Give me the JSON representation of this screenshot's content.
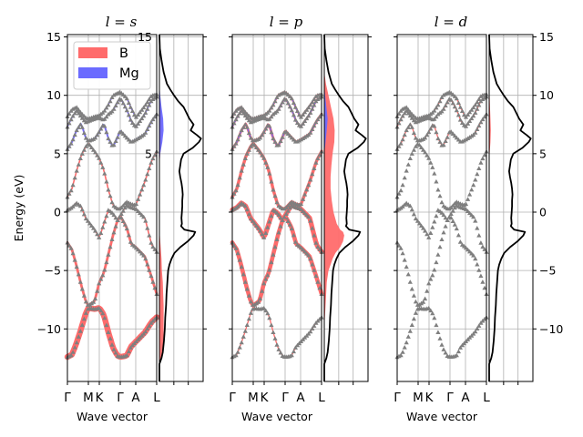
{
  "chart_data": {
    "type": "band-structure-with-dos",
    "ylabel": "Energy (eV)",
    "xlabel": "Wave vector",
    "ylim": [
      -14.5,
      15.2
    ],
    "yticks": [
      -10,
      -5,
      0,
      5,
      10,
      15
    ],
    "kpoints": [
      {
        "label": "Γ",
        "x": 0.0
      },
      {
        "label": "M",
        "x": 0.46
      },
      {
        "label": "K",
        "x": 0.7
      },
      {
        "label": "Γ",
        "x": 1.16
      },
      {
        "label": "A",
        "x": 1.5
      },
      {
        "label": "L",
        "x": 1.96
      }
    ],
    "panels": [
      {
        "title": "l = s"
      },
      {
        "title": "l = p"
      },
      {
        "title": "l = d"
      }
    ],
    "legend": {
      "position": "top-left",
      "entries": [
        {
          "name": "B",
          "color": "#ff6b6b"
        },
        {
          "name": "Mg",
          "color": "#6b6bff"
        }
      ]
    },
    "band_color": "#7f7f7f",
    "total_dos": [
      [
        -14.5,
        0
      ],
      [
        -13,
        0
      ],
      [
        -12.5,
        0.05
      ],
      [
        -12,
        0.08
      ],
      [
        -11,
        0.11
      ],
      [
        -10,
        0.13
      ],
      [
        -9,
        0.14
      ],
      [
        -8,
        0.16
      ],
      [
        -7,
        0.17
      ],
      [
        -6,
        0.19
      ],
      [
        -5,
        0.21
      ],
      [
        -4.5,
        0.24
      ],
      [
        -4,
        0.29
      ],
      [
        -3.5,
        0.36
      ],
      [
        -3,
        0.5
      ],
      [
        -2.5,
        0.68
      ],
      [
        -2,
        0.82
      ],
      [
        -1.7,
        0.86
      ],
      [
        -1.5,
        0.6
      ],
      [
        -1.2,
        0.52
      ],
      [
        -1,
        0.54
      ],
      [
        -0.5,
        0.53
      ],
      [
        0,
        0.54
      ],
      [
        0.5,
        0.55
      ],
      [
        1,
        0.55
      ],
      [
        1.5,
        0.56
      ],
      [
        2,
        0.55
      ],
      [
        2.5,
        0.53
      ],
      [
        3,
        0.5
      ],
      [
        3.5,
        0.48
      ],
      [
        4,
        0.5
      ],
      [
        4.5,
        0.52
      ],
      [
        5,
        0.58
      ],
      [
        5.5,
        0.8
      ],
      [
        6,
        0.95
      ],
      [
        6.3,
        1.0
      ],
      [
        6.6,
        0.9
      ],
      [
        7,
        0.75
      ],
      [
        7.5,
        0.82
      ],
      [
        8,
        0.72
      ],
      [
        8.5,
        0.65
      ],
      [
        9,
        0.58
      ],
      [
        9.5,
        0.45
      ],
      [
        10,
        0.35
      ],
      [
        10.5,
        0.26
      ],
      [
        11,
        0.18
      ],
      [
        12,
        0.1
      ],
      [
        13,
        0.05
      ],
      [
        14,
        0.01
      ],
      [
        15.2,
        0
      ]
    ],
    "projected_dos": {
      "s": {
        "B": [
          [
            -13,
            0
          ],
          [
            -12.5,
            0.04
          ],
          [
            -12,
            0.07
          ],
          [
            -11,
            0.1
          ],
          [
            -10,
            0.1
          ],
          [
            -9,
            0.1
          ],
          [
            -8,
            0.1
          ],
          [
            -7,
            0.09
          ],
          [
            -6,
            0.08
          ],
          [
            -5,
            0.06
          ],
          [
            -4,
            0.05
          ],
          [
            -3,
            0.03
          ],
          [
            -2,
            0.01
          ],
          [
            -1,
            0
          ],
          [
            4,
            0
          ],
          [
            5,
            0.02
          ],
          [
            6,
            0.05
          ],
          [
            7,
            0.07
          ],
          [
            8,
            0.06
          ],
          [
            9,
            0.03
          ],
          [
            10,
            0.01
          ],
          [
            11,
            0
          ]
        ],
        "Mg": [
          [
            -13,
            0
          ],
          [
            4,
            0
          ],
          [
            5,
            0.02
          ],
          [
            6,
            0.07
          ],
          [
            7,
            0.1
          ],
          [
            8,
            0.09
          ],
          [
            9,
            0.05
          ],
          [
            10,
            0.02
          ],
          [
            11,
            0
          ]
        ]
      },
      "p": {
        "B": [
          [
            -13,
            0
          ],
          [
            -10,
            0
          ],
          [
            -8,
            0.03
          ],
          [
            -6,
            0.06
          ],
          [
            -5,
            0.1
          ],
          [
            -4.5,
            0.15
          ],
          [
            -4,
            0.2
          ],
          [
            -3.5,
            0.27
          ],
          [
            -3,
            0.38
          ],
          [
            -2.5,
            0.45
          ],
          [
            -2,
            0.48
          ],
          [
            -1.7,
            0.45
          ],
          [
            -1.5,
            0.38
          ],
          [
            -1,
            0.3
          ],
          [
            0,
            0.22
          ],
          [
            1,
            0.18
          ],
          [
            2,
            0.15
          ],
          [
            3,
            0.15
          ],
          [
            4,
            0.17
          ],
          [
            5,
            0.2
          ],
          [
            6,
            0.24
          ],
          [
            7,
            0.25
          ],
          [
            8,
            0.22
          ],
          [
            9,
            0.16
          ],
          [
            10,
            0.1
          ],
          [
            11,
            0.04
          ],
          [
            12,
            0
          ]
        ],
        "Mg": [
          [
            -13,
            0
          ],
          [
            5,
            0
          ],
          [
            6,
            0.03
          ],
          [
            7,
            0.06
          ],
          [
            8,
            0.08
          ],
          [
            9,
            0.05
          ],
          [
            10,
            0.02
          ],
          [
            11,
            0
          ]
        ]
      },
      "d": {
        "B": [
          [
            -13,
            0
          ],
          [
            4,
            0
          ],
          [
            5,
            0.01
          ],
          [
            6,
            0.03
          ],
          [
            7,
            0.04
          ],
          [
            8,
            0.03
          ],
          [
            9,
            0.02
          ],
          [
            10,
            0.01
          ],
          [
            11,
            0
          ]
        ],
        "Mg": [
          [
            -13,
            0
          ],
          [
            5,
            0
          ],
          [
            6,
            0.01
          ],
          [
            7,
            0.01
          ],
          [
            8,
            0
          ],
          [
            11,
            0
          ]
        ]
      }
    },
    "bands": [
      [
        [
          0,
          -12.4
        ],
        [
          0.1,
          -12.2
        ],
        [
          0.2,
          -11.2
        ],
        [
          0.3,
          -10
        ],
        [
          0.4,
          -8.7
        ],
        [
          0.46,
          -8.2
        ],
        [
          0.6,
          -8.3
        ],
        [
          0.7,
          -8.2
        ],
        [
          0.8,
          -8.8
        ],
        [
          0.9,
          -10.3
        ],
        [
          1.0,
          -11.6
        ],
        [
          1.1,
          -12.3
        ],
        [
          1.16,
          -12.4
        ],
        [
          1.3,
          -12.3
        ],
        [
          1.4,
          -11.5
        ],
        [
          1.5,
          -11.1
        ],
        [
          1.7,
          -10.3
        ],
        [
          1.85,
          -9.4
        ],
        [
          1.96,
          -9.0
        ]
      ],
      [
        [
          0,
          -2.6
        ],
        [
          0.1,
          -3.2
        ],
        [
          0.2,
          -4.6
        ],
        [
          0.3,
          -6.2
        ],
        [
          0.4,
          -7.6
        ],
        [
          0.46,
          -8.0
        ],
        [
          0.6,
          -7.6
        ],
        [
          0.7,
          -6.0
        ],
        [
          0.8,
          -5.2
        ],
        [
          0.9,
          -3.6
        ],
        [
          1.0,
          -2.0
        ],
        [
          1.1,
          -0.7
        ],
        [
          1.16,
          -0.3
        ],
        [
          1.3,
          -1.3
        ],
        [
          1.4,
          -2.7
        ],
        [
          1.5,
          -3.0
        ],
        [
          1.7,
          -3.8
        ],
        [
          1.85,
          -5.6
        ],
        [
          1.96,
          -7.0
        ]
      ],
      [
        [
          0,
          0.2
        ],
        [
          0.1,
          0.4
        ],
        [
          0.2,
          0.8
        ],
        [
          0.3,
          0.5
        ],
        [
          0.4,
          -0.5
        ],
        [
          0.46,
          -0.8
        ],
        [
          0.6,
          -1.5
        ],
        [
          0.7,
          -2.2
        ],
        [
          0.8,
          -1.0
        ],
        [
          0.9,
          0.2
        ],
        [
          1.0,
          -0.1
        ],
        [
          1.1,
          -0.7
        ],
        [
          1.16,
          -0.3
        ],
        [
          1.3,
          0.6
        ],
        [
          1.4,
          0.4
        ],
        [
          1.5,
          0.3
        ],
        [
          1.7,
          -0.5
        ],
        [
          1.85,
          -2.8
        ],
        [
          1.96,
          -3.4
        ]
      ],
      [
        [
          0,
          1.3
        ],
        [
          0.1,
          2.0
        ],
        [
          0.2,
          3.5
        ],
        [
          0.3,
          4.8
        ],
        [
          0.4,
          5.6
        ],
        [
          0.46,
          5.9
        ],
        [
          0.6,
          5.2
        ],
        [
          0.7,
          4.6
        ],
        [
          0.8,
          3.6
        ],
        [
          0.9,
          1.9
        ],
        [
          1.0,
          0.6
        ],
        [
          1.1,
          0.3
        ],
        [
          1.16,
          0.3
        ],
        [
          1.3,
          0.9
        ],
        [
          1.4,
          0.7
        ],
        [
          1.5,
          0.6
        ],
        [
          1.7,
          2.6
        ],
        [
          1.85,
          4.4
        ],
        [
          1.96,
          5.2
        ]
      ],
      [
        [
          0,
          5.4
        ],
        [
          0.1,
          6.0
        ],
        [
          0.2,
          7.0
        ],
        [
          0.3,
          7.6
        ],
        [
          0.4,
          6.4
        ],
        [
          0.46,
          6.1
        ],
        [
          0.6,
          6.3
        ],
        [
          0.7,
          6.9
        ],
        [
          0.8,
          7.6
        ],
        [
          0.9,
          6.3
        ],
        [
          1.0,
          5.6
        ],
        [
          1.1,
          6.4
        ],
        [
          1.16,
          7.0
        ],
        [
          1.3,
          6.4
        ],
        [
          1.4,
          6.0
        ],
        [
          1.5,
          6.2
        ],
        [
          1.7,
          6.7
        ],
        [
          1.85,
          7.8
        ],
        [
          1.96,
          8.4
        ]
      ],
      [
        [
          0,
          7.3
        ],
        [
          0.1,
          8.1
        ],
        [
          0.2,
          8.7
        ],
        [
          0.3,
          8.2
        ],
        [
          0.4,
          7.7
        ],
        [
          0.46,
          7.8
        ],
        [
          0.6,
          8.0
        ],
        [
          0.7,
          8.1
        ],
        [
          0.8,
          7.9
        ],
        [
          0.9,
          8.4
        ],
        [
          1.0,
          8.7
        ],
        [
          1.1,
          9.4
        ],
        [
          1.16,
          9.8
        ],
        [
          1.3,
          8.8
        ],
        [
          1.4,
          7.8
        ],
        [
          1.5,
          7.3
        ],
        [
          1.7,
          8.4
        ],
        [
          1.85,
          9.6
        ],
        [
          1.96,
          9.9
        ]
      ],
      [
        [
          0,
          8.2
        ],
        [
          0.1,
          8.8
        ],
        [
          0.2,
          9.0
        ],
        [
          0.3,
          8.5
        ],
        [
          0.4,
          8.1
        ],
        [
          0.46,
          8.0
        ],
        [
          0.6,
          8.2
        ],
        [
          0.7,
          8.3
        ],
        [
          0.8,
          8.6
        ],
        [
          0.9,
          9.2
        ],
        [
          1.0,
          10.0
        ],
        [
          1.1,
          10.2
        ],
        [
          1.16,
          10.3
        ],
        [
          1.3,
          9.8
        ],
        [
          1.4,
          8.9
        ],
        [
          1.5,
          8.1
        ],
        [
          1.7,
          9.1
        ],
        [
          1.85,
          10.0
        ],
        [
          1.96,
          10.1
        ]
      ]
    ],
    "weights": {
      "s": {
        "B": [
          [
            0.9,
            0.3,
            0.1,
            0.1,
            0.05,
            0.05,
            0.05
          ]
        ],
        "Mg": [
          [
            0,
            0,
            0,
            0,
            0.2,
            0.1,
            0.05
          ]
        ]
      },
      "p": {
        "B": [
          [
            0.05,
            0.6,
            0.7,
            0.4,
            0.3,
            0.2,
            0.2
          ]
        ],
        "Mg": [
          [
            0,
            0,
            0,
            0,
            0.1,
            0.1,
            0.05
          ]
        ]
      },
      "d": {
        "B": [
          [
            0,
            0,
            0,
            0,
            0.05,
            0.05,
            0.05
          ]
        ],
        "Mg": [
          [
            0,
            0,
            0,
            0,
            0.02,
            0.02,
            0.02
          ]
        ]
      }
    }
  }
}
